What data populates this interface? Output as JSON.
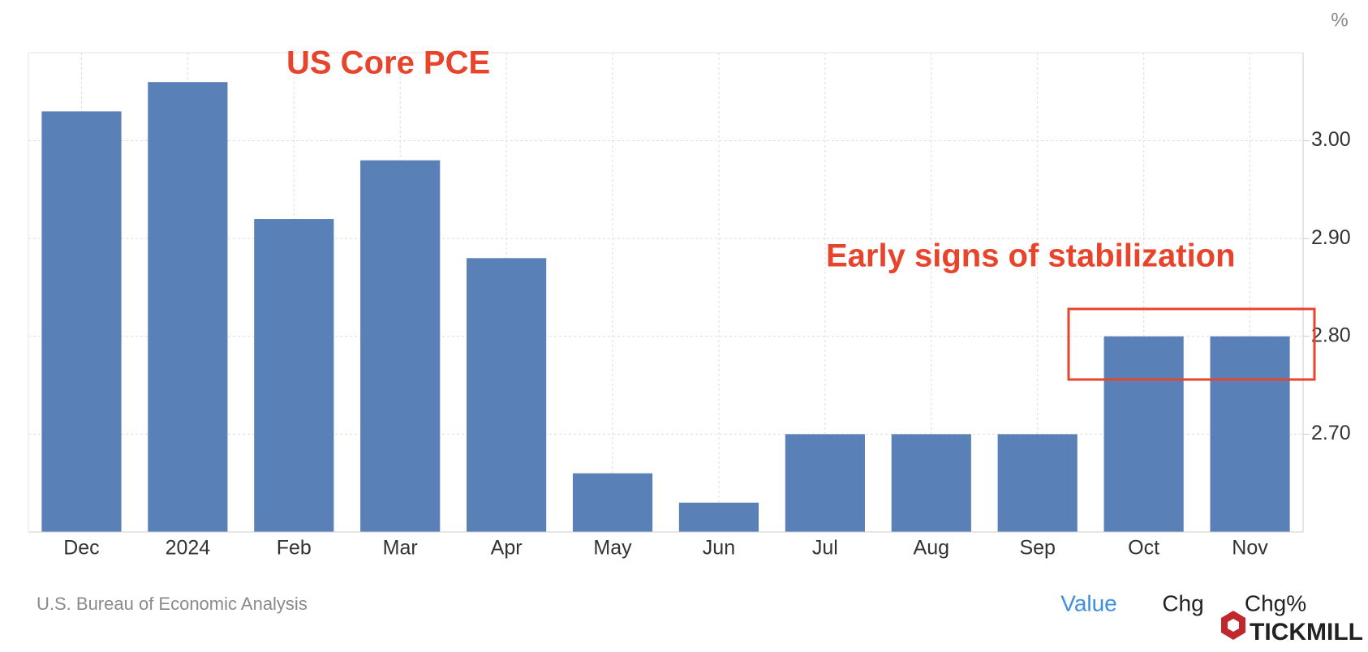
{
  "chart_data": {
    "type": "bar",
    "title": "US Core PCE",
    "annotation": "Early signs of stabilization",
    "unit": "%",
    "categories": [
      "Dec",
      "2024",
      "Feb",
      "Mar",
      "Apr",
      "May",
      "Jun",
      "Jul",
      "Aug",
      "Sep",
      "Oct",
      "Nov"
    ],
    "values": [
      3.03,
      3.06,
      2.92,
      2.98,
      2.88,
      2.66,
      2.63,
      2.7,
      2.7,
      2.7,
      2.8,
      2.8
    ],
    "color": "#5a80b8",
    "ylim": [
      2.6,
      3.09
    ],
    "yticks": [
      {
        "value": 2.7,
        "label": "2.70"
      },
      {
        "value": 2.8,
        "label": "2.80"
      },
      {
        "value": 2.9,
        "label": "2.90"
      },
      {
        "value": 3.0,
        "label": "3.00"
      }
    ],
    "grid": true
  },
  "footer": {
    "source": "U.S. Bureau of Economic Analysis",
    "tabs": [
      "Value",
      "Chg",
      "Chg%"
    ],
    "brand": "TICKMILL"
  }
}
